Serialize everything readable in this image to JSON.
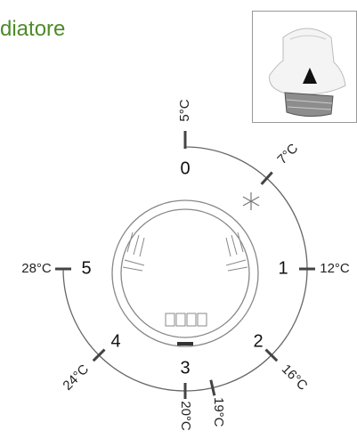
{
  "header": {
    "title": "diatore"
  },
  "dial": {
    "positions": [
      "0",
      "1",
      "2",
      "3",
      "4",
      "5"
    ],
    "temperatures": [
      "5°C",
      "7°C",
      "12°C",
      "16°C",
      "19°C",
      "20°C",
      "24°C",
      "28°C"
    ]
  }
}
